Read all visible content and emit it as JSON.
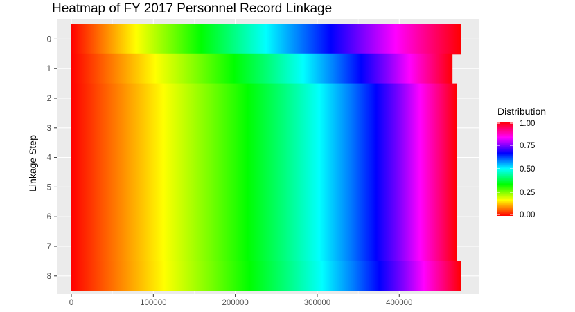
{
  "chart_data": {
    "type": "heatmap",
    "title": "Heatmap of FY 2017 Personnel Record Linkage",
    "xlabel": "",
    "ylabel": "Linkage Step",
    "xlim": [
      0,
      475000
    ],
    "x_ticks": [
      {
        "value": 0,
        "label": "0"
      },
      {
        "value": 100000,
        "label": "100000"
      },
      {
        "value": 200000,
        "label": "200000"
      },
      {
        "value": 300000,
        "label": "300000"
      },
      {
        "value": 400000,
        "label": "400000"
      }
    ],
    "y_categories": [
      "0",
      "1",
      "2",
      "3",
      "4",
      "5",
      "6",
      "7",
      "8"
    ],
    "y_order": "top-to-bottom",
    "rows": [
      {
        "step": "0",
        "records": 475000
      },
      {
        "step": "1",
        "records": 465000
      },
      {
        "step": "2",
        "records": 470000
      },
      {
        "step": "3",
        "records": 470000
      },
      {
        "step": "4",
        "records": 470000
      },
      {
        "step": "5",
        "records": 470000
      },
      {
        "step": "6",
        "records": 470000
      },
      {
        "step": "7",
        "records": 470000
      },
      {
        "step": "8",
        "records": 475000
      }
    ],
    "fill": "Distribution = cumulative fraction of records along x",
    "grid": true,
    "legend": {
      "title": "Distribution",
      "position": "right",
      "ticks": [
        {
          "value": 0.0,
          "label": "0.00"
        },
        {
          "value": 0.25,
          "label": "0.25"
        },
        {
          "value": 0.5,
          "label": "0.50"
        },
        {
          "value": 0.75,
          "label": "0.75"
        },
        {
          "value": 1.0,
          "label": "1.00"
        }
      ],
      "colors": [
        "#ff0000",
        "#ff8000",
        "#ffff00",
        "#80ff00",
        "#00ff00",
        "#00ff80",
        "#00ffff",
        "#0080ff",
        "#0000ff",
        "#8000ff",
        "#ff00ff",
        "#ff0080",
        "#ff0000"
      ]
    }
  }
}
